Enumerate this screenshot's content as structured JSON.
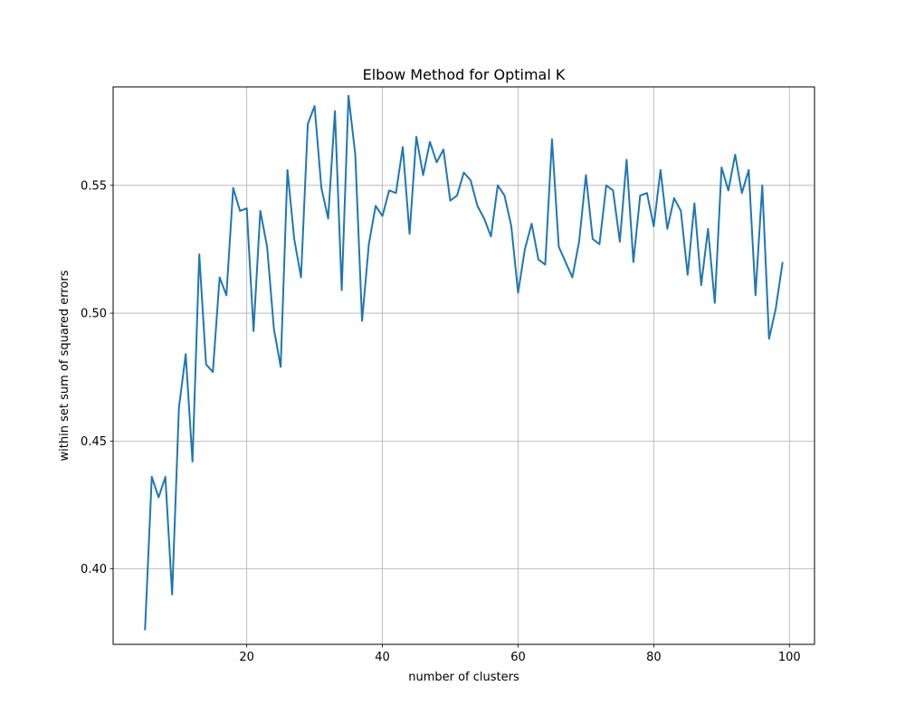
{
  "chart_data": {
    "type": "line",
    "title": "Elbow Method for Optimal K",
    "xlabel": "number of clusters",
    "ylabel": "within set sum of squared errors",
    "xlim": [
      0.3,
      103.7
    ],
    "ylim": [
      0.3705,
      0.5885
    ],
    "xticks": [
      20,
      40,
      60,
      80,
      100
    ],
    "yticks": [
      0.4,
      0.45,
      0.5,
      0.55
    ],
    "ytick_labels": [
      "0.40",
      "0.45",
      "0.50",
      "0.55"
    ],
    "grid": true,
    "series": [
      {
        "color": "#1f77b4",
        "x": [
          5,
          6,
          7,
          8,
          9,
          10,
          11,
          12,
          13,
          14,
          15,
          16,
          17,
          18,
          19,
          20,
          21,
          22,
          23,
          24,
          25,
          26,
          27,
          28,
          29,
          30,
          31,
          32,
          33,
          34,
          35,
          36,
          37,
          38,
          39,
          40,
          41,
          42,
          43,
          44,
          45,
          46,
          47,
          48,
          49,
          50,
          51,
          52,
          53,
          54,
          55,
          56,
          57,
          58,
          59,
          60,
          61,
          62,
          63,
          64,
          65,
          66,
          67,
          68,
          69,
          70,
          71,
          72,
          73,
          74,
          75,
          76,
          77,
          78,
          79,
          80,
          81,
          82,
          83,
          84,
          85,
          86,
          87,
          88,
          89,
          90,
          91,
          92,
          93,
          94,
          95,
          96,
          97,
          98,
          99
        ],
        "values": [
          0.376,
          0.436,
          0.428,
          0.436,
          0.39,
          0.463,
          0.484,
          0.442,
          0.523,
          0.48,
          0.477,
          0.514,
          0.507,
          0.549,
          0.54,
          0.541,
          0.493,
          0.54,
          0.526,
          0.494,
          0.479,
          0.556,
          0.529,
          0.514,
          0.574,
          0.581,
          0.549,
          0.537,
          0.579,
          0.509,
          0.585,
          0.562,
          0.497,
          0.527,
          0.542,
          0.538,
          0.548,
          0.547,
          0.565,
          0.531,
          0.569,
          0.554,
          0.567,
          0.559,
          0.564,
          0.544,
          0.546,
          0.555,
          0.552,
          0.542,
          0.537,
          0.53,
          0.55,
          0.546,
          0.534,
          0.508,
          0.525,
          0.535,
          0.521,
          0.519,
          0.568,
          0.526,
          0.52,
          0.514,
          0.528,
          0.554,
          0.529,
          0.527,
          0.55,
          0.548,
          0.528,
          0.56,
          0.52,
          0.546,
          0.547,
          0.534,
          0.556,
          0.533,
          0.545,
          0.54,
          0.515,
          0.543,
          0.511,
          0.533,
          0.504,
          0.557,
          0.548,
          0.562,
          0.547,
          0.556,
          0.507,
          0.55,
          0.49,
          0.502,
          0.52
        ]
      }
    ]
  }
}
